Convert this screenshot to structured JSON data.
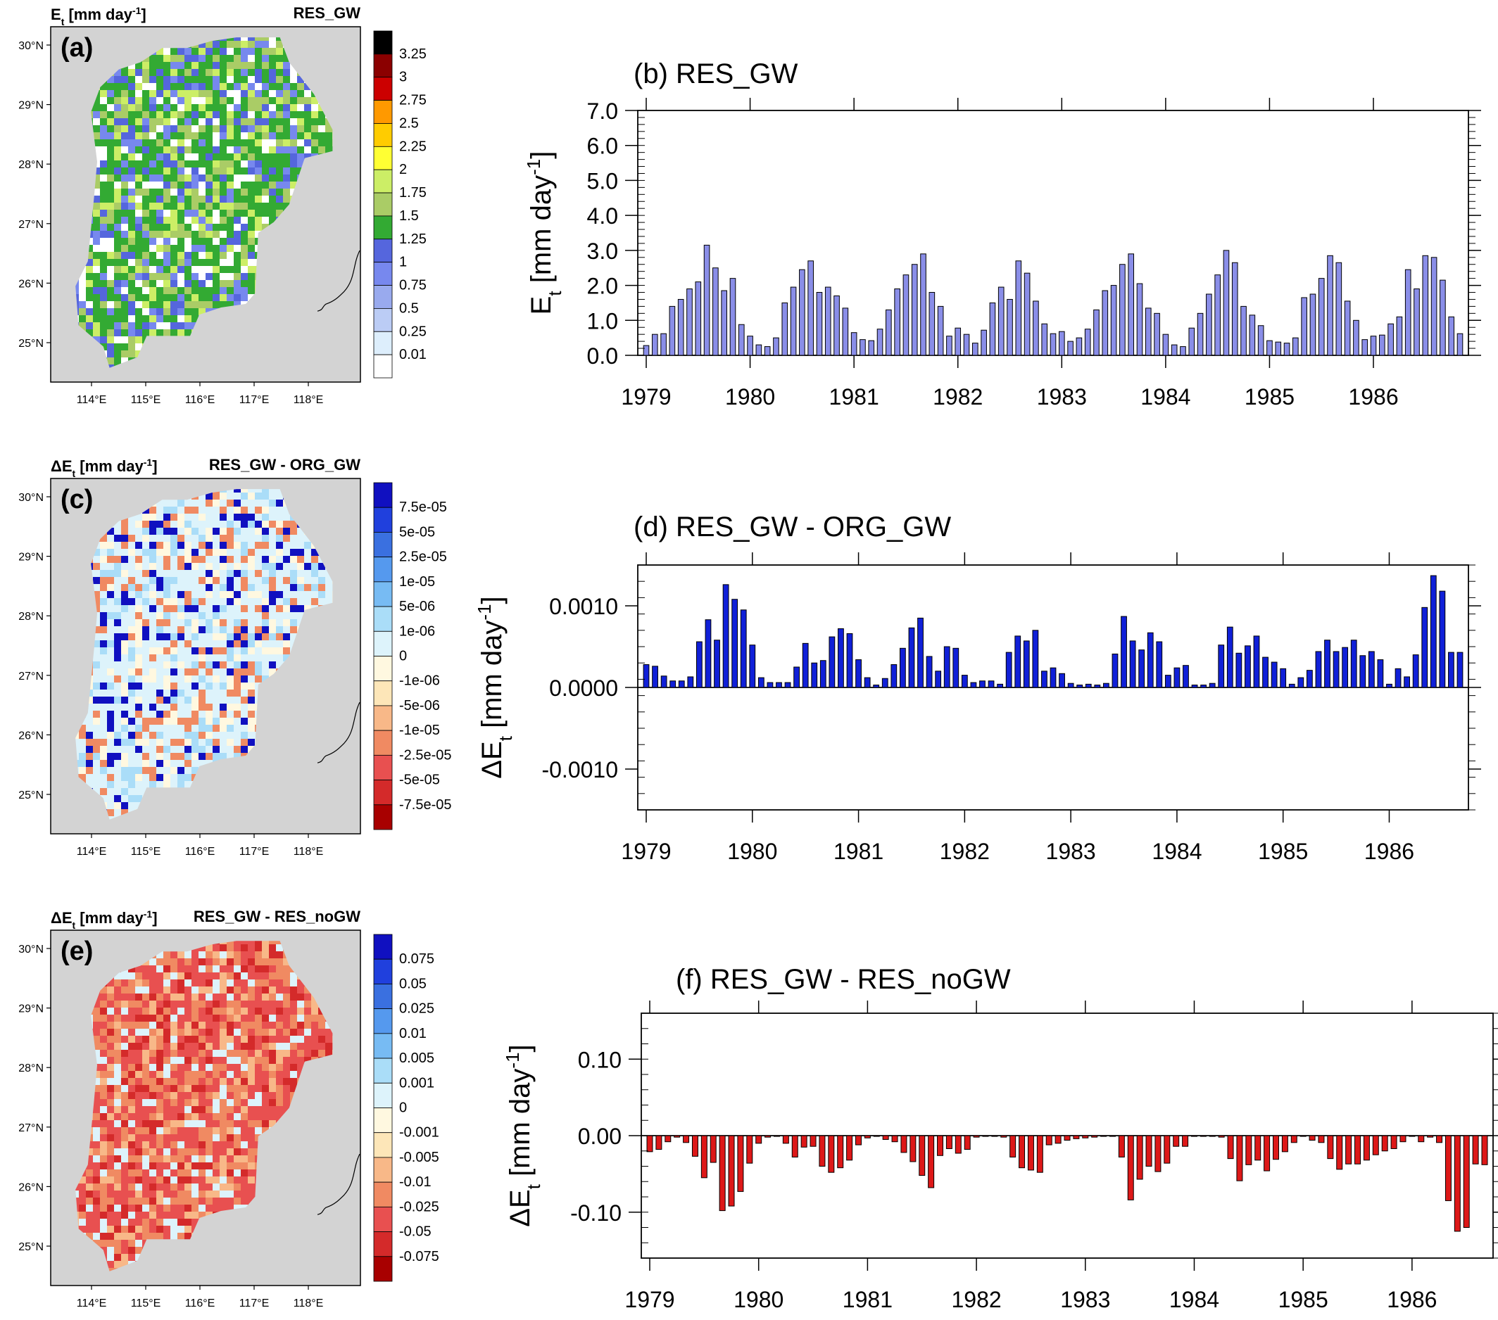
{
  "figure": {
    "panels": [
      {
        "id": "a",
        "type": "map",
        "panel_label": "(a)",
        "left_title": "E",
        "left_sub": "t",
        "left_rest": " [mm day",
        "left_sup": "-1",
        "left_end": "]",
        "right_title": "RES_GW",
        "lat_labels": [
          "30°N",
          "29°N",
          "28°N",
          "27°N",
          "26°N",
          "25°N"
        ],
        "lon_labels": [
          "114°E",
          "115°E",
          "116°E",
          "117°E",
          "118°E"
        ],
        "colorbar": {
          "labels": [
            "3.25",
            "3",
            "2.75",
            "2.5",
            "2.25",
            "2",
            "1.75",
            "1.5",
            "1.25",
            "1",
            "0.75",
            "0.5",
            "0.25",
            "0.01"
          ],
          "colors": [
            "#000000",
            "#8b0000",
            "#cc0000",
            "#ff9900",
            "#ffcc00",
            "#ffff33",
            "#ccee66",
            "#aacc66",
            "#33aa33",
            "#5566dd",
            "#7788ee",
            "#99aaee",
            "#bbccf5",
            "#ddeefc",
            "#ffffff"
          ]
        },
        "palette": [
          "#33aa33",
          "#33aa33",
          "#33aa33",
          "#5566dd",
          "#7788ee",
          "#aacc66",
          "#ccee66",
          "#ffffff"
        ]
      },
      {
        "id": "c",
        "type": "map",
        "panel_label": "(c)",
        "left_title": "ΔE",
        "left_sub": "t",
        "left_rest": " [mm day",
        "left_sup": "-1",
        "left_end": "]",
        "right_title": "RES_GW - ORG_GW",
        "lat_labels": [
          "30°N",
          "29°N",
          "28°N",
          "27°N",
          "26°N",
          "25°N"
        ],
        "lon_labels": [
          "114°E",
          "115°E",
          "116°E",
          "117°E",
          "118°E"
        ],
        "colorbar": {
          "labels": [
            "7.5e-05",
            "5e-05",
            "2.5e-05",
            "1e-05",
            "5e-06",
            "1e-06",
            "0",
            "-1e-06",
            "-5e-06",
            "-1e-05",
            "-2.5e-05",
            "-5e-05",
            "-7.5e-05"
          ],
          "colors": [
            "#1010c0",
            "#2040dd",
            "#3a70e0",
            "#5599ee",
            "#77bbf3",
            "#aaddf8",
            "#ddf3fb",
            "#fff8e0",
            "#fde6b8",
            "#f8b888",
            "#f08a62",
            "#e85050",
            "#d42a2a",
            "#a80000"
          ]
        },
        "palette": [
          "#ddf3fb",
          "#ddf3fb",
          "#ddf3fb",
          "#fff8e0",
          "#aaddf8",
          "#1010c0",
          "#f08a62"
        ]
      },
      {
        "id": "e",
        "type": "map",
        "panel_label": "(e)",
        "left_title": "ΔE",
        "left_sub": "t",
        "left_rest": " [mm day",
        "left_sup": "-1",
        "left_end": "]",
        "right_title": "RES_GW - RES_noGW",
        "lat_labels": [
          "30°N",
          "29°N",
          "28°N",
          "27°N",
          "26°N",
          "25°N"
        ],
        "lon_labels": [
          "114°E",
          "115°E",
          "116°E",
          "117°E",
          "118°E"
        ],
        "colorbar": {
          "labels": [
            "0.075",
            "0.05",
            "0.025",
            "0.01",
            "0.005",
            "0.001",
            "0",
            "-0.001",
            "-0.005",
            "-0.01",
            "-0.025",
            "-0.05",
            "-0.075"
          ],
          "colors": [
            "#1010c0",
            "#2040dd",
            "#3a70e0",
            "#5599ee",
            "#77bbf3",
            "#aaddf8",
            "#ddf3fb",
            "#fff8e0",
            "#fde6b8",
            "#f8b888",
            "#f08a62",
            "#e85050",
            "#d42a2a",
            "#a80000"
          ]
        },
        "palette": [
          "#e85050",
          "#e85050",
          "#e85050",
          "#f08a62",
          "#f08a62",
          "#d42a2a",
          "#f8b888",
          "#ddf3fb"
        ]
      }
    ]
  },
  "chart_data": [
    {
      "id": "b",
      "type": "bar",
      "title": "(b) RES_GW",
      "ylabel_main": "E",
      "ylabel_sub": "t",
      "ylabel_rest": " [mm day",
      "ylabel_sup": "-1",
      "ylabel_end": "]",
      "ylim": [
        0,
        7
      ],
      "yticks": [
        0,
        1,
        2,
        3,
        4,
        5,
        6,
        7
      ],
      "ytick_labels": [
        "0.0",
        "1.0",
        "2.0",
        "3.0",
        "4.0",
        "5.0",
        "6.0",
        "7.0"
      ],
      "x_tick_labels": [
        "1979",
        "1980",
        "1981",
        "1982",
        "1983",
        "1984",
        "1985",
        "1986"
      ],
      "bar_color": "#8a8ee8",
      "values": [
        0.28,
        0.6,
        0.62,
        1.4,
        1.6,
        1.9,
        2.1,
        3.15,
        2.5,
        1.85,
        2.2,
        0.88,
        0.55,
        0.3,
        0.25,
        0.5,
        1.5,
        1.95,
        2.45,
        2.7,
        1.8,
        1.95,
        1.7,
        1.35,
        0.65,
        0.45,
        0.42,
        0.75,
        1.3,
        1.9,
        2.3,
        2.6,
        2.9,
        1.8,
        1.4,
        0.55,
        0.78,
        0.6,
        0.35,
        0.72,
        1.5,
        1.95,
        1.6,
        2.7,
        2.35,
        1.55,
        0.9,
        0.62,
        0.68,
        0.4,
        0.5,
        0.75,
        1.3,
        1.85,
        2.0,
        2.6,
        2.9,
        2.05,
        1.35,
        1.2,
        0.6,
        0.3,
        0.25,
        0.78,
        1.2,
        1.75,
        2.3,
        3.0,
        2.65,
        1.4,
        1.15,
        0.85,
        0.42,
        0.38,
        0.35,
        0.5,
        1.65,
        1.75,
        2.2,
        2.85,
        2.65,
        1.55,
        1.0,
        0.45,
        0.55,
        0.58,
        0.9,
        1.1,
        2.45,
        1.9,
        2.85,
        2.8,
        2.15,
        1.1,
        0.62
      ]
    },
    {
      "id": "d",
      "type": "bar",
      "title": "(d) RES_GW - ORG_GW",
      "ylabel_main": "ΔE",
      "ylabel_sub": "t",
      "ylabel_rest": " [mm day",
      "ylabel_sup": "-1",
      "ylabel_end": "]",
      "ylim": [
        -0.0015,
        0.0015
      ],
      "yticks": [
        -0.001,
        0,
        0.001
      ],
      "ytick_labels": [
        "-0.0010",
        "0.0000",
        "0.0010"
      ],
      "x_tick_labels": [
        "1979",
        "1980",
        "1981",
        "1982",
        "1983",
        "1984",
        "1985",
        "1986"
      ],
      "bar_color": "#1020d8",
      "values": [
        0.00028,
        0.00026,
        0.00014,
        8e-05,
        8e-05,
        0.00013,
        0.00056,
        0.00083,
        0.00058,
        0.00126,
        0.00108,
        0.00095,
        0.00052,
        0.00012,
        6e-05,
        6e-05,
        6e-05,
        0.00025,
        0.00054,
        0.0003,
        0.00033,
        0.00062,
        0.00072,
        0.00066,
        0.00034,
        0.00012,
        3e-05,
        0.00011,
        0.00028,
        0.00048,
        0.00073,
        0.00085,
        0.00038,
        0.0002,
        0.0005,
        0.00048,
        0.00015,
        6e-05,
        8e-05,
        8e-05,
        4e-05,
        0.00043,
        0.00063,
        0.00057,
        0.0007,
        0.0002,
        0.00024,
        0.00017,
        5e-05,
        3e-05,
        4e-05,
        3e-05,
        5e-05,
        0.00041,
        0.00087,
        0.00057,
        0.00046,
        0.00067,
        0.00056,
        0.00015,
        0.00024,
        0.00027,
        3e-05,
        3e-05,
        5e-05,
        0.00052,
        0.00074,
        0.00042,
        0.00051,
        0.00063,
        0.00037,
        0.00031,
        0.00023,
        4e-05,
        0.00012,
        0.00021,
        0.00044,
        0.00058,
        0.00044,
        0.00049,
        0.00058,
        0.00039,
        0.00044,
        0.00034,
        4e-05,
        0.00023,
        0.00013,
        0.0004,
        0.00098,
        0.00137,
        0.00118,
        0.00043,
        0.00043
      ]
    },
    {
      "id": "f",
      "type": "bar",
      "title": "(f) RES_GW - RES_noGW",
      "ylabel_main": "ΔE",
      "ylabel_sub": "t",
      "ylabel_rest": " [mm day",
      "ylabel_sup": "-1",
      "ylabel_end": "]",
      "ylim": [
        -0.16,
        0.16
      ],
      "yticks": [
        -0.1,
        0,
        0.1
      ],
      "ytick_labels": [
        "-0.10",
        "0.00",
        "0.10"
      ],
      "x_tick_labels": [
        "1979",
        "1980",
        "1981",
        "1982",
        "1983",
        "1984",
        "1985",
        "1986"
      ],
      "bar_color": "#dd1818",
      "values": [
        -0.021,
        -0.018,
        -0.008,
        -0.002,
        -0.009,
        -0.027,
        -0.055,
        -0.035,
        -0.098,
        -0.092,
        -0.073,
        -0.036,
        -0.01,
        -0.002,
        -0.001,
        -0.01,
        -0.028,
        -0.015,
        -0.014,
        -0.04,
        -0.048,
        -0.042,
        -0.032,
        -0.012,
        -0.003,
        -0.001,
        -0.005,
        -0.008,
        -0.022,
        -0.034,
        -0.052,
        -0.068,
        -0.026,
        -0.017,
        -0.023,
        -0.018,
        -0.002,
        -0.001,
        -0.001,
        -0.002,
        -0.028,
        -0.042,
        -0.045,
        -0.048,
        -0.012,
        -0.01,
        -0.006,
        -0.004,
        -0.003,
        -0.002,
        -0.001,
        -0.001,
        -0.028,
        -0.084,
        -0.057,
        -0.04,
        -0.047,
        -0.036,
        -0.014,
        -0.014,
        -0.001,
        -0.001,
        -0.001,
        -0.002,
        -0.03,
        -0.059,
        -0.038,
        -0.032,
        -0.046,
        -0.031,
        -0.021,
        -0.009,
        -0.001,
        -0.006,
        -0.009,
        -0.03,
        -0.044,
        -0.037,
        -0.037,
        -0.032,
        -0.025,
        -0.02,
        -0.017,
        -0.008,
        -0.001,
        -0.008,
        -0.002,
        -0.009,
        -0.085,
        -0.125,
        -0.12,
        -0.037,
        -0.038
      ]
    }
  ]
}
